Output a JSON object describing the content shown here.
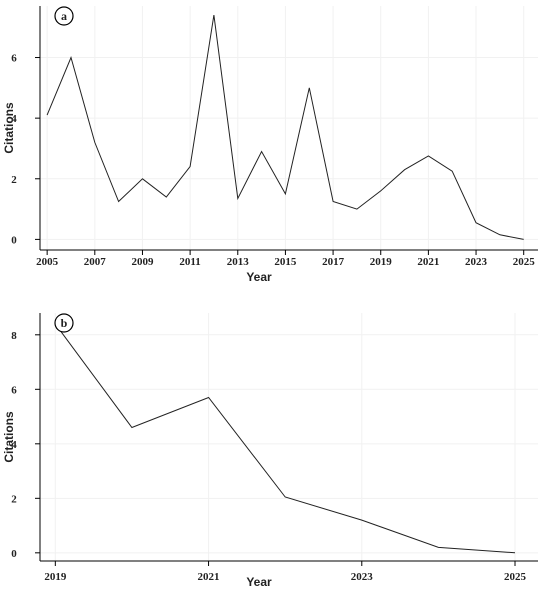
{
  "chart_data": [
    {
      "type": "line",
      "panel_label": "a",
      "xlabel": "Year",
      "ylabel": "Citations",
      "xlim": [
        2004.7,
        2025.6
      ],
      "ylim": [
        -0.35,
        7.7
      ],
      "x_ticks": [
        2005,
        2007,
        2009,
        2011,
        2013,
        2015,
        2017,
        2019,
        2021,
        2023,
        2025
      ],
      "y_ticks": [
        0,
        2,
        4,
        6
      ],
      "grid": true,
      "legend": "none",
      "line_color": "#222222",
      "x": [
        2005,
        2006,
        2007,
        2008,
        2009,
        2010,
        2011,
        2012,
        2013,
        2014,
        2015,
        2016,
        2017,
        2018,
        2019,
        2020,
        2021,
        2022,
        2023,
        2024,
        2025
      ],
      "y": [
        4.1,
        6.0,
        3.2,
        1.25,
        2.0,
        1.4,
        2.4,
        7.4,
        1.35,
        2.9,
        1.5,
        5.0,
        1.25,
        1.0,
        1.6,
        2.3,
        2.75,
        2.25,
        0.55,
        0.15,
        0.0
      ]
    },
    {
      "type": "line",
      "panel_label": "b",
      "xlabel": "Year",
      "ylabel": "Citations",
      "xlim": [
        2018.8,
        2025.3
      ],
      "ylim": [
        -0.3,
        8.8
      ],
      "x_ticks": [
        2019,
        2021,
        2023,
        2025
      ],
      "y_ticks": [
        0,
        2,
        4,
        6,
        8
      ],
      "grid": true,
      "legend": "none",
      "line_color": "#222222",
      "x": [
        2019,
        2020,
        2021,
        2022,
        2023,
        2024,
        2025
      ],
      "y": [
        8.4,
        4.6,
        5.7,
        2.05,
        1.2,
        0.2,
        0.0
      ]
    }
  ]
}
